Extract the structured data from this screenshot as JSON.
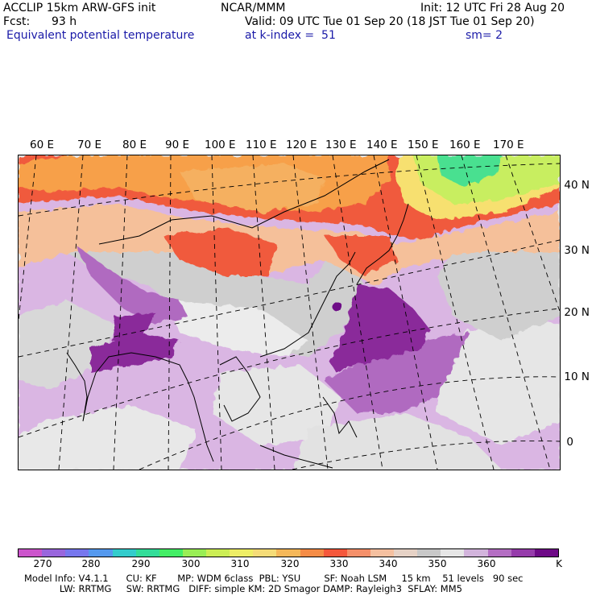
{
  "header": {
    "model": "ACCLIP 15km ARW-GFS init",
    "org": "NCAR/MMM",
    "init": "Init: 12 UTC Fri 28 Aug 20",
    "fcst_label": "Fcst:",
    "fcst_value": "93 h",
    "valid": "Valid: 09 UTC Tue 01 Sep 20 (18 JST Tue 01 Sep 20)",
    "field": "Equivalent potential temperature",
    "level": "at k-index =  51",
    "smooth": "sm= 2"
  },
  "map": {
    "lon_labels": [
      "60 E",
      "70 E",
      "80 E",
      "90 E",
      "100 E",
      "110 E",
      "120 E",
      "130 E",
      "140 E",
      "150 E",
      "160 E",
      "170 E"
    ],
    "lat_labels": [
      "40 N",
      "30 N",
      "20 N",
      "10 N",
      "0"
    ],
    "colors": {
      "purple_dark": "#8a2a9a",
      "purple_mid": "#b06ac0",
      "lavender": "#dab6e3",
      "gray": "#c8c8c8",
      "light_gray": "#ececec",
      "red": "#f05a3c",
      "orange": "#f5a050",
      "salmon": "#f5c09a",
      "yellow": "#f7e070",
      "lime": "#c8ee60",
      "green": "#48e090"
    }
  },
  "colorbar": {
    "unit": "K",
    "ticks": [
      "270",
      "280",
      "290",
      "300",
      "310",
      "320",
      "330",
      "340",
      "350",
      "360"
    ],
    "colors": [
      "#cc55cc",
      "#9966dd",
      "#7777ee",
      "#5599ee",
      "#33cccc",
      "#33dd99",
      "#44ee66",
      "#99ee55",
      "#ccee55",
      "#eeee66",
      "#f5dc78",
      "#f5b85a",
      "#f58c46",
      "#f5583c",
      "#f5906a",
      "#f5c0a0",
      "#e6d2c6",
      "#c8c8c8",
      "#e6e6e6",
      "#d2b4dc",
      "#b46ec3",
      "#963cab",
      "#6e0a87"
    ]
  },
  "footer": {
    "line1": "Model Info: V4.1.1      CU: KF       MP: WDM 6class  PBL: YSU        SF: Noah LSM     15 km    51 levels   90 sec",
    "line2": "            LW: RRTMG     SW: RRTMG   DIFF: simple KM: 2D Smagor DAMP: Rayleigh3  SFLAY: MM5"
  }
}
